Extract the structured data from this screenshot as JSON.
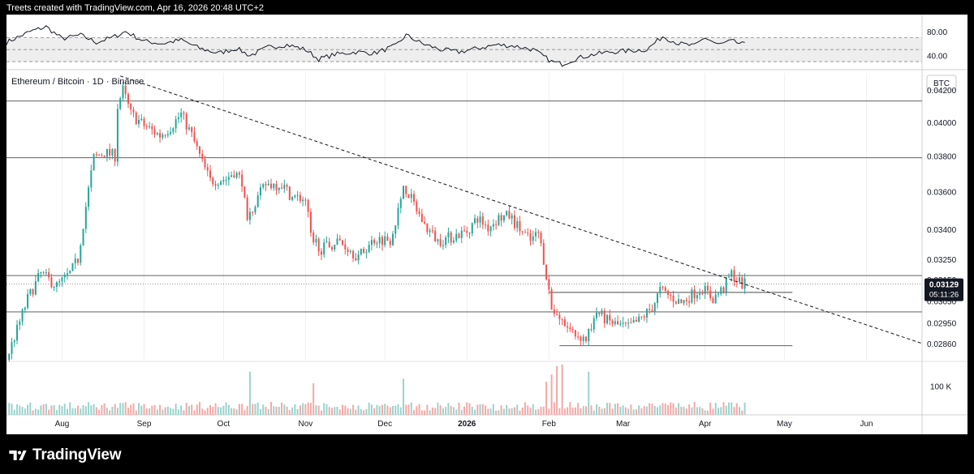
{
  "header": {
    "caption": "Treets created with TradingView.com, Apr 16, 2026 20:48 UTC+2"
  },
  "footer": {
    "brand": "TradingView"
  },
  "colors": {
    "up": "#26a69a",
    "down": "#ef5350",
    "grid": "#e6e6e6",
    "text": "#131722",
    "vol_up": "#9bd3cd",
    "vol_down": "#f4a9a7"
  },
  "chart_data": {
    "type": "candlestick",
    "symbol_label": "Ethereum / Bitcoin · 1D · Binance",
    "currency": "BTC",
    "last_price": 0.03129,
    "last_price_label": "0.03129",
    "countdown_label": "05:11:26",
    "x_labels": [
      "Aug",
      "Sep",
      "Oct",
      "Nov",
      "Dec",
      "2026",
      "Feb",
      "Mar",
      "Apr",
      "May",
      "Jun"
    ],
    "x_dates": [
      "2025-08-01",
      "2025-09-01",
      "2025-10-01",
      "2025-11-01",
      "2025-12-01",
      "2026-01-01",
      "2026-02-01",
      "2026-03-01",
      "2026-04-01",
      "2026-05-01",
      "2026-06-01"
    ],
    "x_range": [
      "2025-07-11",
      "2026-06-22"
    ],
    "price_axis": {
      "ticks": [
        0.0286,
        0.0295,
        0.0305,
        0.0315,
        0.0325,
        0.034,
        0.036,
        0.038,
        0.04,
        0.042
      ],
      "tick_labels": [
        "0.02860",
        "0.02950",
        "0.03050",
        "0.03150",
        "0.03250",
        "0.03400",
        "0.03600",
        "0.03800",
        "0.04000",
        "0.04200"
      ],
      "range": [
        0.0279,
        0.0431
      ],
      "scale": "log"
    },
    "horizontal_levels": [
      0.0413,
      0.0379,
      0.0317,
      0.03
    ],
    "range_box_lines": [
      {
        "price": 0.0309,
        "from": "2026-02-01",
        "to": "2026-05-04"
      },
      {
        "price": 0.0285,
        "from": "2026-02-05",
        "to": "2026-05-04"
      }
    ],
    "trendline": {
      "from": {
        "date": "2025-08-23",
        "price": 0.0429
      },
      "to": {
        "date": "2026-06-22",
        "price": 0.0286
      },
      "style": "dashed"
    },
    "anchors": [
      [
        "2025-07-12",
        0.0279
      ],
      [
        "2025-07-16",
        0.0292
      ],
      [
        "2025-07-20",
        0.0306
      ],
      [
        "2025-07-25",
        0.0318
      ],
      [
        "2025-07-31",
        0.0312
      ],
      [
        "2025-08-05",
        0.0318
      ],
      [
        "2025-08-08",
        0.0325
      ],
      [
        "2025-08-11",
        0.0352
      ],
      [
        "2025-08-14",
        0.0379
      ],
      [
        "2025-08-18",
        0.0382
      ],
      [
        "2025-08-22",
        0.038
      ],
      [
        "2025-08-23",
        0.041
      ],
      [
        "2025-08-25",
        0.042
      ],
      [
        "2025-08-28",
        0.0405
      ],
      [
        "2025-09-02",
        0.0398
      ],
      [
        "2025-09-08",
        0.0392
      ],
      [
        "2025-09-12",
        0.0397
      ],
      [
        "2025-09-16",
        0.0405
      ],
      [
        "2025-09-20",
        0.0392
      ],
      [
        "2025-09-24",
        0.0376
      ],
      [
        "2025-09-27",
        0.0366
      ],
      [
        "2025-10-03",
        0.0367
      ],
      [
        "2025-10-06",
        0.0371
      ],
      [
        "2025-10-09",
        0.0366
      ],
      [
        "2025-10-11",
        0.0342
      ],
      [
        "2025-10-13",
        0.0352
      ],
      [
        "2025-10-18",
        0.0364
      ],
      [
        "2025-10-24",
        0.0364
      ],
      [
        "2025-10-28",
        0.0357
      ],
      [
        "2025-11-02",
        0.0356
      ],
      [
        "2025-11-04",
        0.0337
      ],
      [
        "2025-11-08",
        0.033
      ],
      [
        "2025-11-15",
        0.0334
      ],
      [
        "2025-11-22",
        0.0326
      ],
      [
        "2025-11-28",
        0.0335
      ],
      [
        "2025-12-04",
        0.0335
      ],
      [
        "2025-12-08",
        0.0354
      ],
      [
        "2025-12-09",
        0.0364
      ],
      [
        "2025-12-13",
        0.0353
      ],
      [
        "2025-12-17",
        0.0342
      ],
      [
        "2025-12-22",
        0.0334
      ],
      [
        "2025-12-27",
        0.0336
      ],
      [
        "2026-01-02",
        0.0339
      ],
      [
        "2026-01-06",
        0.0346
      ],
      [
        "2026-01-10",
        0.0341
      ],
      [
        "2026-01-14",
        0.0346
      ],
      [
        "2026-01-18",
        0.0347
      ],
      [
        "2026-01-22",
        0.034
      ],
      [
        "2026-01-26",
        0.0334
      ],
      [
        "2026-01-29",
        0.0338
      ],
      [
        "2026-01-31",
        0.0325
      ],
      [
        "2026-02-02",
        0.031
      ],
      [
        "2026-02-04",
        0.0297
      ],
      [
        "2026-02-08",
        0.0294
      ],
      [
        "2026-02-12",
        0.029
      ],
      [
        "2026-02-16",
        0.0288
      ],
      [
        "2026-02-20",
        0.03
      ],
      [
        "2026-02-24",
        0.0296
      ],
      [
        "2026-02-28",
        0.0294
      ],
      [
        "2026-03-04",
        0.0293
      ],
      [
        "2026-03-08",
        0.0296
      ],
      [
        "2026-03-13",
        0.0302
      ],
      [
        "2026-03-16",
        0.031
      ],
      [
        "2026-03-20",
        0.0307
      ],
      [
        "2026-03-24",
        0.0304
      ],
      [
        "2026-03-28",
        0.0308
      ],
      [
        "2026-04-01",
        0.0311
      ],
      [
        "2026-04-05",
        0.0306
      ],
      [
        "2026-04-09",
        0.0311
      ],
      [
        "2026-04-12",
        0.0318
      ],
      [
        "2026-04-14",
        0.0315
      ],
      [
        "2026-04-16",
        0.03129
      ]
    ],
    "volume_axis": {
      "tick_labels": [
        "100 K"
      ],
      "ticks": [
        100000
      ],
      "range": [
        0,
        180000
      ]
    },
    "volume_spikes": [
      [
        "2025-10-11",
        150000
      ],
      [
        "2025-11-04",
        110000
      ],
      [
        "2025-12-08",
        125000
      ],
      [
        "2026-01-31",
        115000
      ],
      [
        "2026-02-02",
        140000
      ],
      [
        "2026-02-04",
        170000
      ],
      [
        "2026-02-06",
        175000
      ],
      [
        "2026-02-16",
        150000
      ]
    ],
    "rsi": {
      "axis_labels": [
        "80.00",
        "40.00"
      ],
      "ticks": [
        80,
        40
      ],
      "band_upper": 70,
      "band_mid": 50,
      "band_lower": 30,
      "range": [
        22,
        92
      ],
      "anchors": [
        [
          "2025-07-11",
          62
        ],
        [
          "2025-07-20",
          80
        ],
        [
          "2025-07-26",
          88
        ],
        [
          "2025-08-01",
          68
        ],
        [
          "2025-08-08",
          74
        ],
        [
          "2025-08-14",
          62
        ],
        [
          "2025-08-20",
          70
        ],
        [
          "2025-08-25",
          80
        ],
        [
          "2025-09-01",
          64
        ],
        [
          "2025-09-08",
          60
        ],
        [
          "2025-09-15",
          66
        ],
        [
          "2025-09-22",
          52
        ],
        [
          "2025-09-29",
          44
        ],
        [
          "2025-10-06",
          52
        ],
        [
          "2025-10-11",
          40
        ],
        [
          "2025-10-18",
          54
        ],
        [
          "2025-10-25",
          58
        ],
        [
          "2025-11-01",
          50
        ],
        [
          "2025-11-06",
          34
        ],
        [
          "2025-11-12",
          42
        ],
        [
          "2025-11-20",
          46
        ],
        [
          "2025-11-27",
          44
        ],
        [
          "2025-12-05",
          56
        ],
        [
          "2025-12-09",
          74
        ],
        [
          "2025-12-15",
          60
        ],
        [
          "2025-12-22",
          50
        ],
        [
          "2025-12-29",
          46
        ],
        [
          "2026-01-05",
          52
        ],
        [
          "2026-01-12",
          58
        ],
        [
          "2026-01-19",
          56
        ],
        [
          "2026-01-26",
          50
        ],
        [
          "2026-02-02",
          30
        ],
        [
          "2026-02-06",
          26
        ],
        [
          "2026-02-12",
          36
        ],
        [
          "2026-02-18",
          42
        ],
        [
          "2026-02-24",
          46
        ],
        [
          "2026-03-03",
          48
        ],
        [
          "2026-03-10",
          50
        ],
        [
          "2026-03-16",
          72
        ],
        [
          "2026-03-22",
          60
        ],
        [
          "2026-03-28",
          56
        ],
        [
          "2026-04-01",
          70
        ],
        [
          "2026-04-06",
          58
        ],
        [
          "2026-04-11",
          64
        ],
        [
          "2026-04-16",
          58
        ]
      ]
    }
  }
}
